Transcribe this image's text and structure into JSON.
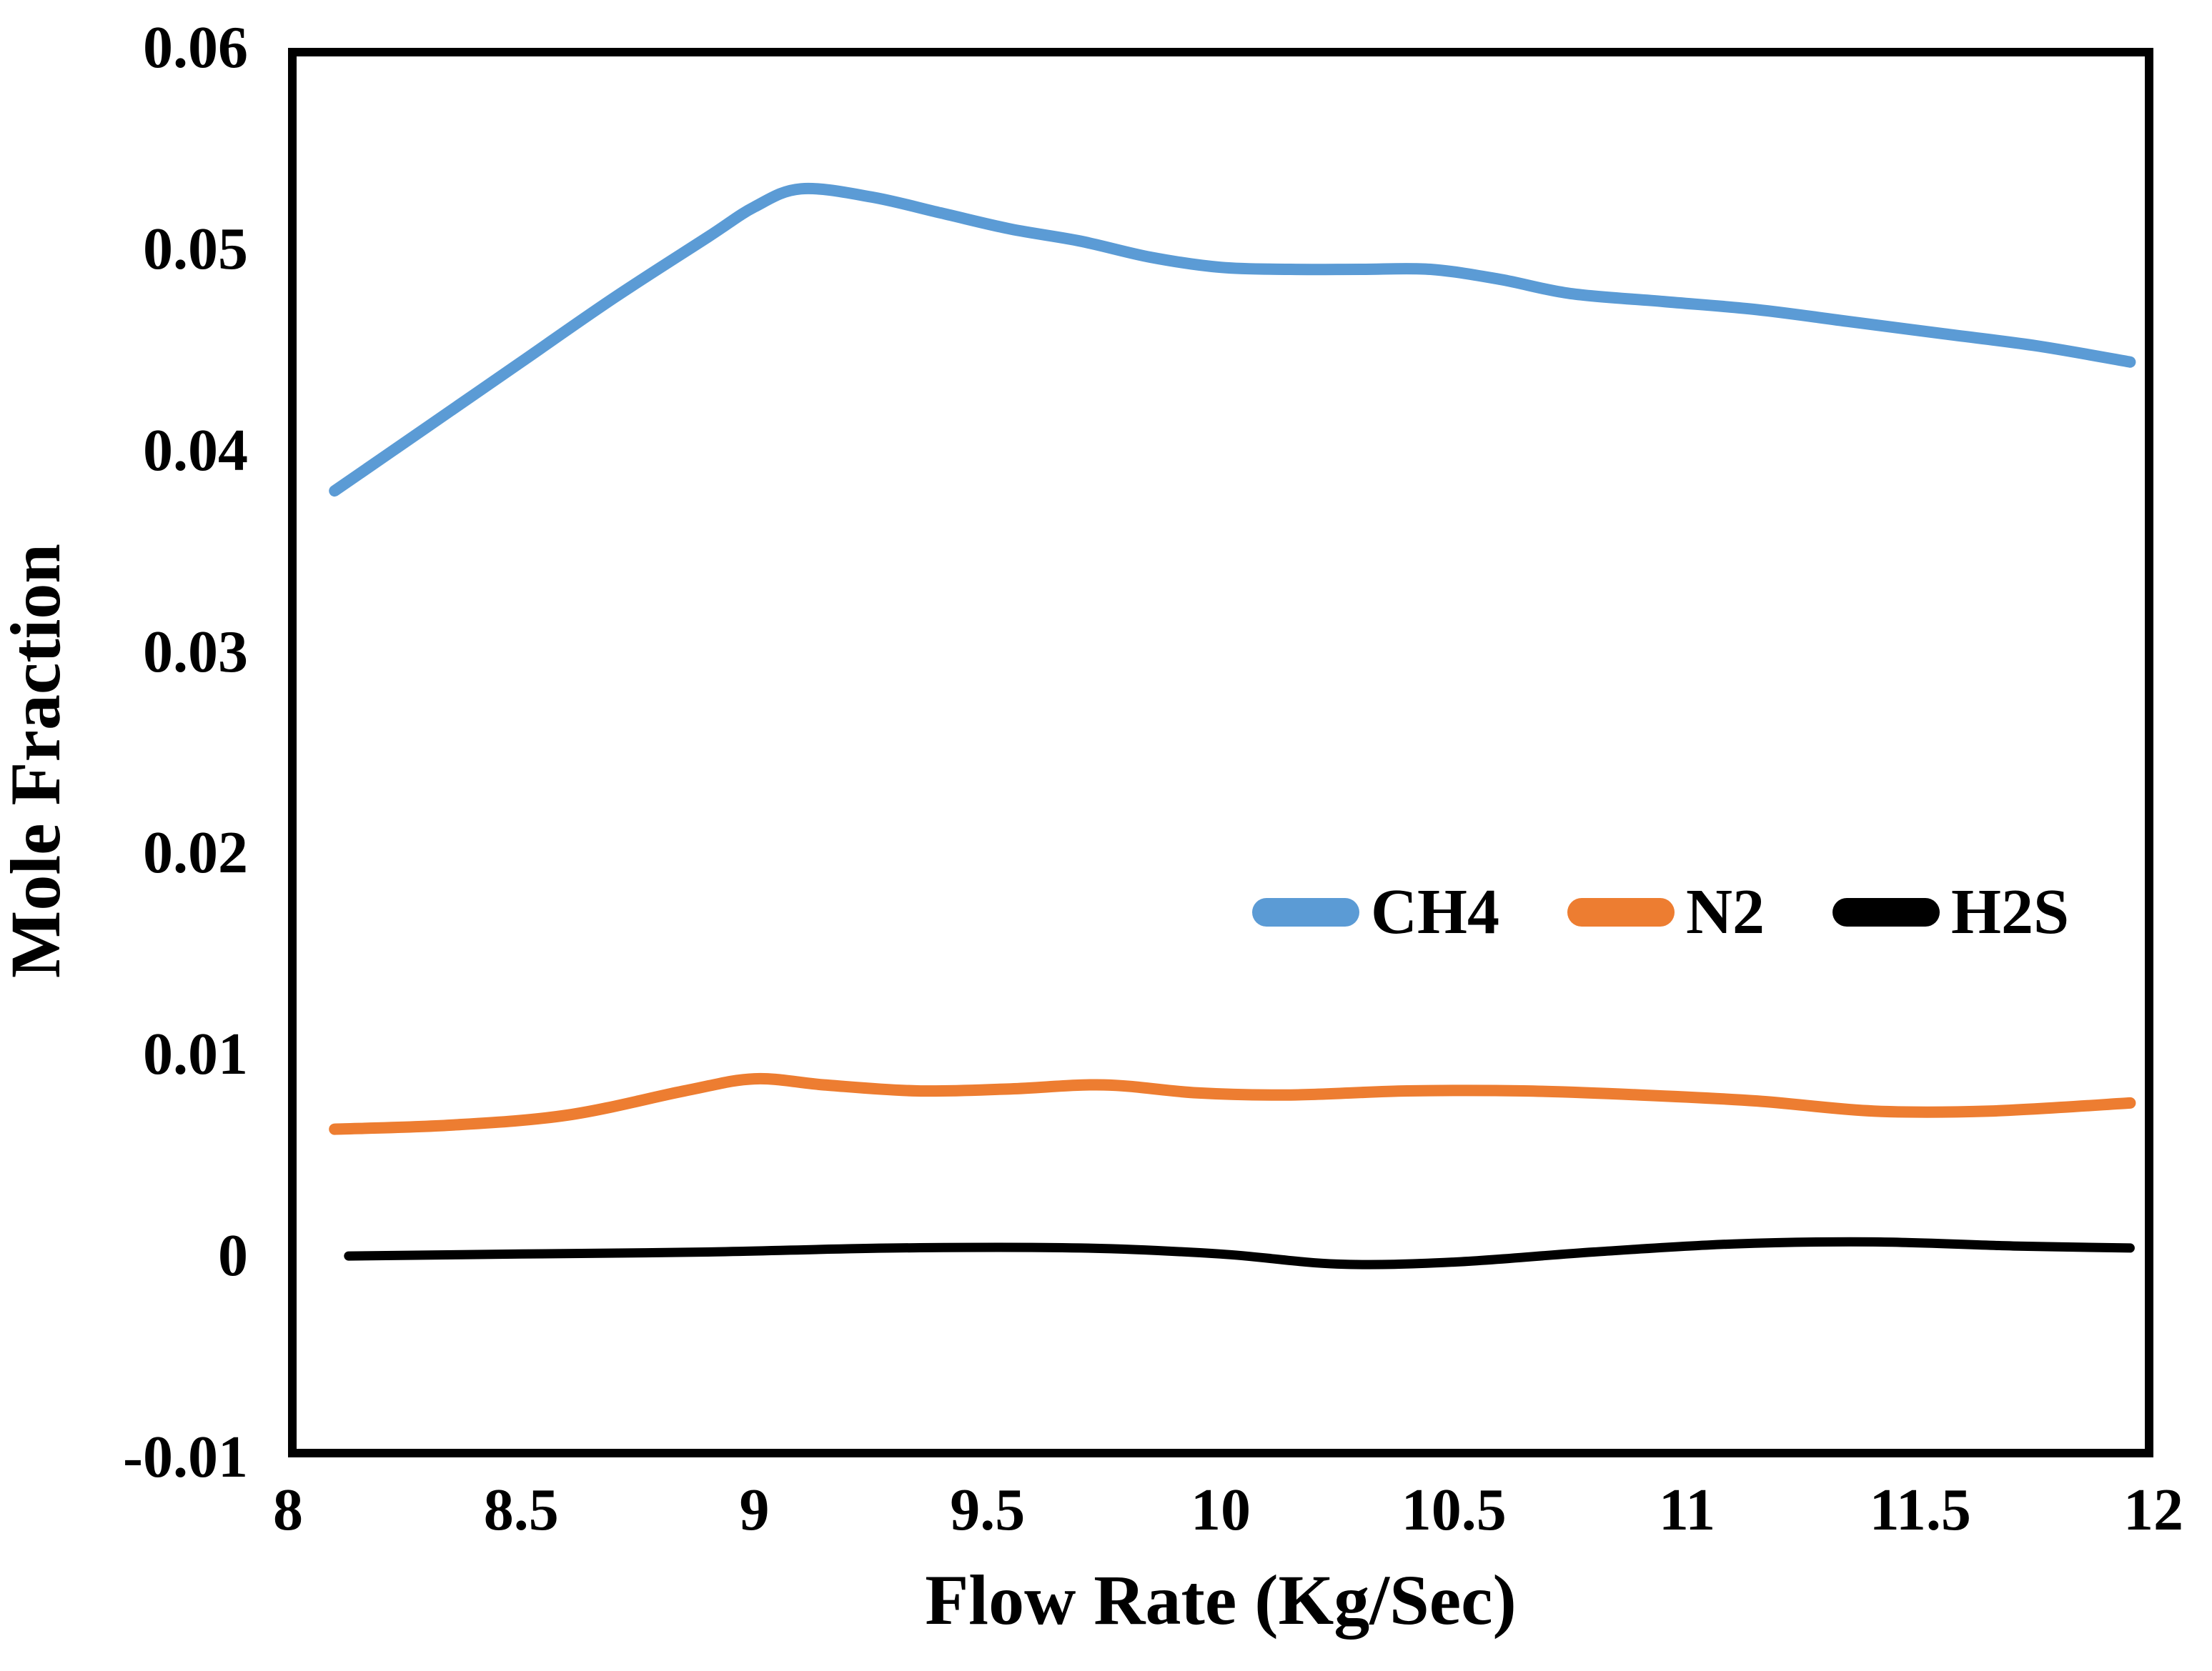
{
  "chart_data": {
    "type": "line",
    "title": "",
    "xlabel": "Flow Rate (Kg/Sec)",
    "ylabel": "Mole Fraction",
    "xlim": [
      8,
      12
    ],
    "ylim": [
      -0.01,
      0.06
    ],
    "grid": false,
    "plot_border_color": "#000000",
    "background": "#ffffff",
    "legend_position": "inside-center-right",
    "x_ticks": [
      {
        "value": 8,
        "label": "8"
      },
      {
        "value": 8.5,
        "label": "8.5"
      },
      {
        "value": 9,
        "label": "9"
      },
      {
        "value": 9.5,
        "label": "9.5"
      },
      {
        "value": 10,
        "label": "10"
      },
      {
        "value": 10.5,
        "label": "10.5"
      },
      {
        "value": 11,
        "label": "11"
      },
      {
        "value": 11.5,
        "label": "11.5"
      },
      {
        "value": 12,
        "label": "12"
      }
    ],
    "y_ticks": [
      {
        "value": 0.06,
        "label": "0.06"
      },
      {
        "value": 0.05,
        "label": "0.05"
      },
      {
        "value": 0.04,
        "label": "0.04"
      },
      {
        "value": 0.03,
        "label": "0.03"
      },
      {
        "value": 0.02,
        "label": "0.02"
      },
      {
        "value": 0.01,
        "label": "0.01"
      },
      {
        "value": 0,
        "label": "0"
      },
      {
        "value": -0.01,
        "label": "-0.01"
      }
    ],
    "series": [
      {
        "name": "CH4",
        "color": "#5B9BD5",
        "stroke_width": 16,
        "points": [
          [
            8.1,
            0.038
          ],
          [
            8.3,
            0.0412
          ],
          [
            8.5,
            0.0444
          ],
          [
            8.7,
            0.0476
          ],
          [
            8.9,
            0.0506
          ],
          [
            9.0,
            0.0521
          ],
          [
            9.1,
            0.053
          ],
          [
            9.25,
            0.0526
          ],
          [
            9.4,
            0.0518
          ],
          [
            9.55,
            0.051
          ],
          [
            9.7,
            0.0504
          ],
          [
            9.85,
            0.0496
          ],
          [
            10.0,
            0.0491
          ],
          [
            10.15,
            0.049
          ],
          [
            10.3,
            0.049
          ],
          [
            10.45,
            0.049
          ],
          [
            10.6,
            0.0485
          ],
          [
            10.75,
            0.0478
          ],
          [
            10.95,
            0.0474
          ],
          [
            11.15,
            0.047
          ],
          [
            11.35,
            0.0464
          ],
          [
            11.55,
            0.0458
          ],
          [
            11.75,
            0.0452
          ],
          [
            11.95,
            0.0444
          ]
        ]
      },
      {
        "name": "N2",
        "color": "#ED7D31",
        "stroke_width": 16,
        "points": [
          [
            8.1,
            0.0063
          ],
          [
            8.35,
            0.0065
          ],
          [
            8.6,
            0.007
          ],
          [
            8.85,
            0.0082
          ],
          [
            9.0,
            0.0088
          ],
          [
            9.15,
            0.0085
          ],
          [
            9.35,
            0.0082
          ],
          [
            9.55,
            0.0083
          ],
          [
            9.75,
            0.0085
          ],
          [
            9.95,
            0.0081
          ],
          [
            10.15,
            0.008
          ],
          [
            10.4,
            0.0082
          ],
          [
            10.65,
            0.0082
          ],
          [
            10.9,
            0.008
          ],
          [
            11.15,
            0.0077
          ],
          [
            11.4,
            0.0072
          ],
          [
            11.65,
            0.0072
          ],
          [
            11.95,
            0.0076
          ]
        ]
      },
      {
        "name": "H2S",
        "color": "#000000",
        "stroke_width": 13,
        "points": [
          [
            8.13,
            0.0
          ],
          [
            8.5,
            0.0001
          ],
          [
            8.9,
            0.0002
          ],
          [
            9.3,
            0.0004
          ],
          [
            9.7,
            0.0004
          ],
          [
            10.0,
            0.0001
          ],
          [
            10.25,
            -0.0004
          ],
          [
            10.5,
            -0.0003
          ],
          [
            10.8,
            0.0002
          ],
          [
            11.1,
            0.0006
          ],
          [
            11.4,
            0.0007
          ],
          [
            11.7,
            0.0005
          ],
          [
            11.95,
            0.0004
          ]
        ]
      }
    ]
  },
  "legend": {
    "items": [
      {
        "label": "CH4",
        "color": "#5B9BD5"
      },
      {
        "label": "N2",
        "color": "#ED7D31"
      },
      {
        "label": "H2S",
        "color": "#000000"
      }
    ]
  }
}
